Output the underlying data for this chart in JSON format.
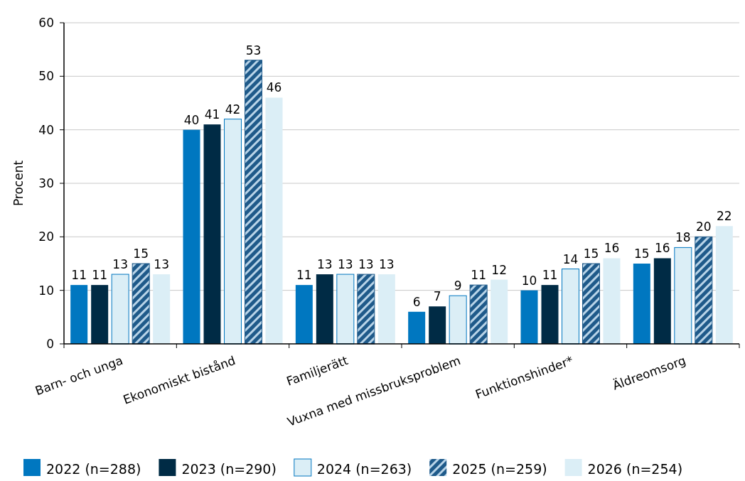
{
  "chart_data": {
    "type": "bar",
    "ylabel": "Procent",
    "categories": [
      "Barn- och unga",
      "Ekonomiskt bistånd",
      "Familjerätt",
      "Vuxna med missbruksproblem",
      "Funktionshinder*",
      "Äldreomsorg"
    ],
    "series": [
      {
        "name": "2022 (n=288)",
        "color": "#0077c0",
        "values": [
          11,
          40,
          11,
          6,
          10,
          15
        ]
      },
      {
        "name": "2023 (n=290)",
        "color": "#002b45",
        "values": [
          11,
          41,
          13,
          7,
          11,
          16
        ]
      },
      {
        "name": "2024 (n=263)",
        "color": "#dbeef6",
        "values": [
          13,
          42,
          13,
          9,
          14,
          18
        ]
      },
      {
        "name": "2025 (n=259)",
        "color": "#1f5a8a",
        "values": [
          15,
          53,
          13,
          11,
          15,
          20
        ]
      },
      {
        "name": "2026 (n=254)",
        "color": "#dbeef6",
        "values": [
          13,
          46,
          13,
          12,
          16,
          22
        ]
      }
    ],
    "ylim": [
      0,
      60
    ],
    "yticks": [
      0,
      10,
      20,
      30,
      40,
      50,
      60
    ],
    "grid": "y",
    "legend": "bottom",
    "data_labels": true
  }
}
